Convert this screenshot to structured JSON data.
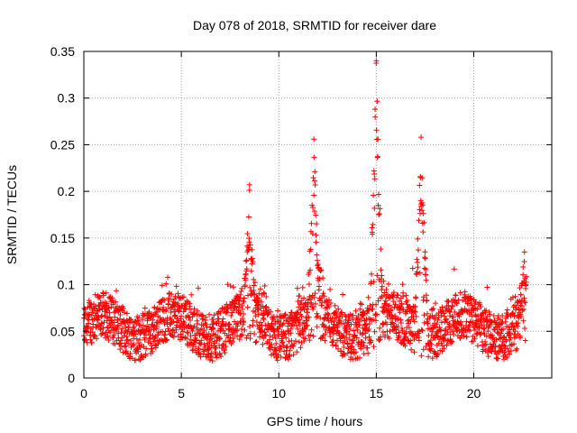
{
  "chart_data": {
    "type": "scatter",
    "title": "Day 078 of 2018, SRMTID for receiver dare",
    "xlabel": "GPS time / hours",
    "ylabel": "SRMTID / TECUs",
    "xlim": [
      0,
      24
    ],
    "ylim": [
      0,
      0.35
    ],
    "x_ticks": [
      0,
      5,
      10,
      15,
      20
    ],
    "x_tick_labels": [
      "0",
      "5",
      "10",
      "15",
      "20"
    ],
    "y_ticks": [
      0,
      0.05,
      0.1,
      0.15,
      0.2,
      0.25,
      0.3,
      0.35
    ],
    "y_tick_labels": [
      "0",
      "0.05",
      "0.1",
      "0.15",
      "0.2",
      "0.25",
      "0.3",
      "0.35"
    ],
    "grid": true,
    "marker": "plus",
    "series_color": "#ff0000",
    "x_data_range": [
      0,
      22.7
    ],
    "baseline": {
      "typical": 0.055,
      "min": 0.01,
      "max": 0.11
    },
    "peaks": [
      {
        "x": 8.5,
        "y": 0.207
      },
      {
        "x": 11.8,
        "y": 0.256
      },
      {
        "x": 15.0,
        "y": 0.34
      },
      {
        "x": 17.3,
        "y": 0.258
      },
      {
        "x": 22.6,
        "y": 0.135
      }
    ]
  }
}
